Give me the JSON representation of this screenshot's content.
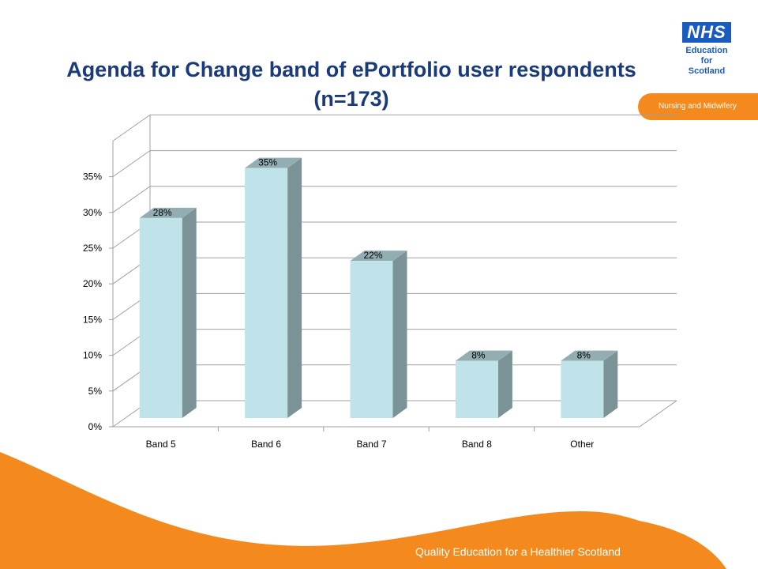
{
  "header": {
    "logo_title": "NHS",
    "logo_line1": "Education",
    "logo_line2": "for",
    "logo_line3": "Scotland",
    "department": "Nursing and Midwifery"
  },
  "footer": {
    "tagline": "Quality Education for a Healthier Scotland"
  },
  "colors": {
    "title": "#1a3a7a",
    "accent": "#f48a1e",
    "bar_front": "#bfe3e8",
    "bar_side": "#7b9397",
    "bar_top": "#93aeb2"
  },
  "chart_data": {
    "type": "bar",
    "title": "Agenda for Change band of ePortfolio user respondents (n=173)",
    "categories": [
      "Band 5",
      "Band 6",
      "Band 7",
      "Band 8",
      "Other"
    ],
    "values": [
      28,
      35,
      22,
      8,
      8
    ],
    "data_labels": [
      "28%",
      "35%",
      "22%",
      "8%",
      "8%"
    ],
    "yticks": [
      "0%",
      "5%",
      "10%",
      "15%",
      "20%",
      "25%",
      "30%",
      "35%"
    ],
    "ylim": [
      0,
      40
    ],
    "xlabel": "",
    "ylabel": "",
    "grid": true,
    "style": "3d-column"
  }
}
